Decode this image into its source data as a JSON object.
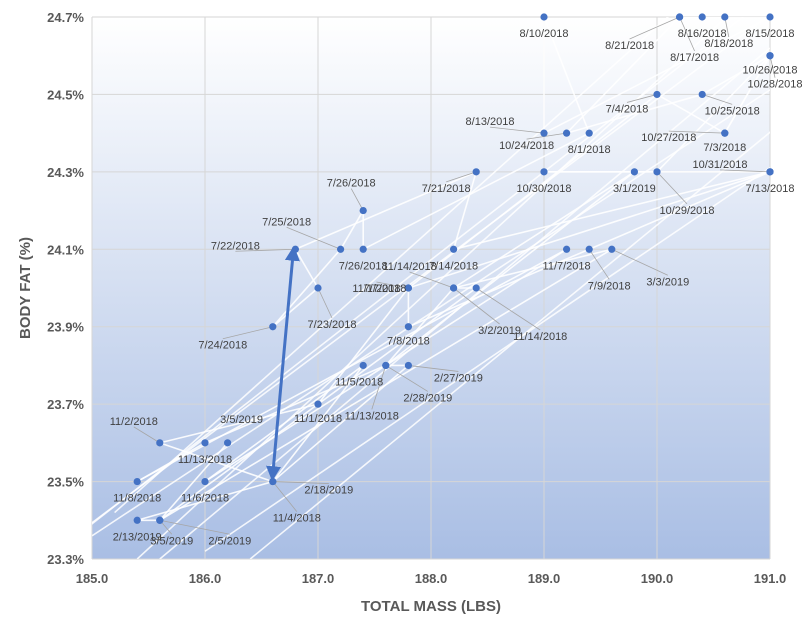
{
  "chart_data": {
    "type": "scatter",
    "title": "",
    "xlabel": "TOTAL MASS (LBS)",
    "ylabel": "BODY FAT (%)",
    "xlim": [
      185.0,
      191.0
    ],
    "ylim": [
      23.3,
      24.7
    ],
    "x_ticks": [
      185.0,
      186.0,
      187.0,
      188.0,
      189.0,
      190.0,
      191.0
    ],
    "x_tick_labels": [
      "185.0",
      "186.0",
      "187.0",
      "188.0",
      "189.0",
      "190.0",
      "191.0"
    ],
    "y_ticks": [
      23.3,
      23.5,
      23.7,
      23.9,
      24.1,
      24.3,
      24.5,
      24.7
    ],
    "y_tick_labels": [
      "23.3%",
      "23.5%",
      "23.7%",
      "23.9%",
      "24.1%",
      "24.3%",
      "24.5%",
      "24.7%"
    ],
    "grid": true,
    "background": "gradient white (top) to light blue (bottom)",
    "marker_color": "#4472C4",
    "line_color": "#ffffff",
    "arrow_color": "#4472C4",
    "arrow": {
      "from": [
        186.6,
        23.52
      ],
      "to": [
        186.78,
        24.09
      ]
    },
    "points": [
      {
        "label": "7/3/2018",
        "x": 190.6,
        "y": 24.4
      },
      {
        "label": "7/4/2018",
        "x": 190.0,
        "y": 24.5
      },
      {
        "label": "7/7/2018",
        "x": 187.8,
        "y": 24.0
      },
      {
        "label": "7/8/2018",
        "x": 187.8,
        "y": 23.9
      },
      {
        "label": "7/9/2018",
        "x": 189.4,
        "y": 24.1
      },
      {
        "label": "7/13/2018",
        "x": 191.0,
        "y": 24.3
      },
      {
        "label": "7/14/2018",
        "x": 188.2,
        "y": 24.1
      },
      {
        "label": "7/21/2018",
        "x": 188.4,
        "y": 24.3
      },
      {
        "label": "7/22/2018",
        "x": 186.8,
        "y": 24.1
      },
      {
        "label": "7/23/2018",
        "x": 187.0,
        "y": 24.0
      },
      {
        "label": "7/24/2018",
        "x": 186.6,
        "y": 23.9
      },
      {
        "label": "7/25/2018",
        "x": 187.2,
        "y": 24.1
      },
      {
        "label": "7/26/2018",
        "x": 187.4,
        "y": 24.2
      },
      {
        "label": "7/26/2018",
        "x": 187.4,
        "y": 24.1
      },
      {
        "label": "8/1/2018",
        "x": 189.4,
        "y": 24.4
      },
      {
        "label": "8/10/2018",
        "x": 189.0,
        "y": 24.7
      },
      {
        "label": "8/13/2018",
        "x": 189.0,
        "y": 24.4
      },
      {
        "label": "8/15/2018",
        "x": 191.0,
        "y": 24.7
      },
      {
        "label": "8/16/2018",
        "x": 190.4,
        "y": 24.7
      },
      {
        "label": "8/17/2018",
        "x": 190.2,
        "y": 24.7
      },
      {
        "label": "8/18/2018",
        "x": 190.6,
        "y": 24.7
      },
      {
        "label": "8/21/2018",
        "x": 190.2,
        "y": 24.7
      },
      {
        "label": "10/24/2018",
        "x": 189.2,
        "y": 24.4
      },
      {
        "label": "10/25/2018",
        "x": 190.4,
        "y": 24.5
      },
      {
        "label": "10/26/2018",
        "x": 191.0,
        "y": 24.6
      },
      {
        "label": "10/27/2018",
        "x": 190.6,
        "y": 24.4
      },
      {
        "label": "10/28/2018",
        "x": 191.0,
        "y": 24.6
      },
      {
        "label": "10/29/2018",
        "x": 190.0,
        "y": 24.3
      },
      {
        "label": "10/30/2018",
        "x": 189.0,
        "y": 24.3
      },
      {
        "label": "10/31/2018",
        "x": 191.0,
        "y": 24.3
      },
      {
        "label": "11/1/2018",
        "x": 187.8,
        "y": 24.0
      },
      {
        "label": "11/1/2018",
        "x": 187.0,
        "y": 23.7
      },
      {
        "label": "11/2/2018",
        "x": 185.6,
        "y": 23.6
      },
      {
        "label": "11/4/2018",
        "x": 186.6,
        "y": 23.5
      },
      {
        "label": "11/5/2018",
        "x": 187.4,
        "y": 23.8
      },
      {
        "label": "11/6/2018",
        "x": 186.0,
        "y": 23.5
      },
      {
        "label": "11/7/2018",
        "x": 189.2,
        "y": 24.1
      },
      {
        "label": "11/8/2018",
        "x": 185.4,
        "y": 23.5
      },
      {
        "label": "11/13/2018",
        "x": 186.0,
        "y": 23.6
      },
      {
        "label": "11/13/2018",
        "x": 187.6,
        "y": 23.8
      },
      {
        "label": "11/14/2018",
        "x": 188.2,
        "y": 24.0
      },
      {
        "label": "11/14/2018",
        "x": 188.4,
        "y": 24.0
      },
      {
        "label": "2/5/2019",
        "x": 185.6,
        "y": 23.4
      },
      {
        "label": "2/13/2019",
        "x": 185.4,
        "y": 23.4
      },
      {
        "label": "2/18/2019",
        "x": 186.6,
        "y": 23.5
      },
      {
        "label": "2/27/2019",
        "x": 187.8,
        "y": 23.8
      },
      {
        "label": "2/28/2019",
        "x": 187.6,
        "y": 23.8
      },
      {
        "label": "3/1/2019",
        "x": 189.8,
        "y": 24.3
      },
      {
        "label": "3/2/2019",
        "x": 188.2,
        "y": 24.0
      },
      {
        "label": "3/3/2019",
        "x": 189.6,
        "y": 24.1
      },
      {
        "label": "3/5/2019",
        "x": 185.6,
        "y": 23.4
      },
      {
        "label": "3/5/2019",
        "x": 186.2,
        "y": 23.6
      }
    ]
  }
}
